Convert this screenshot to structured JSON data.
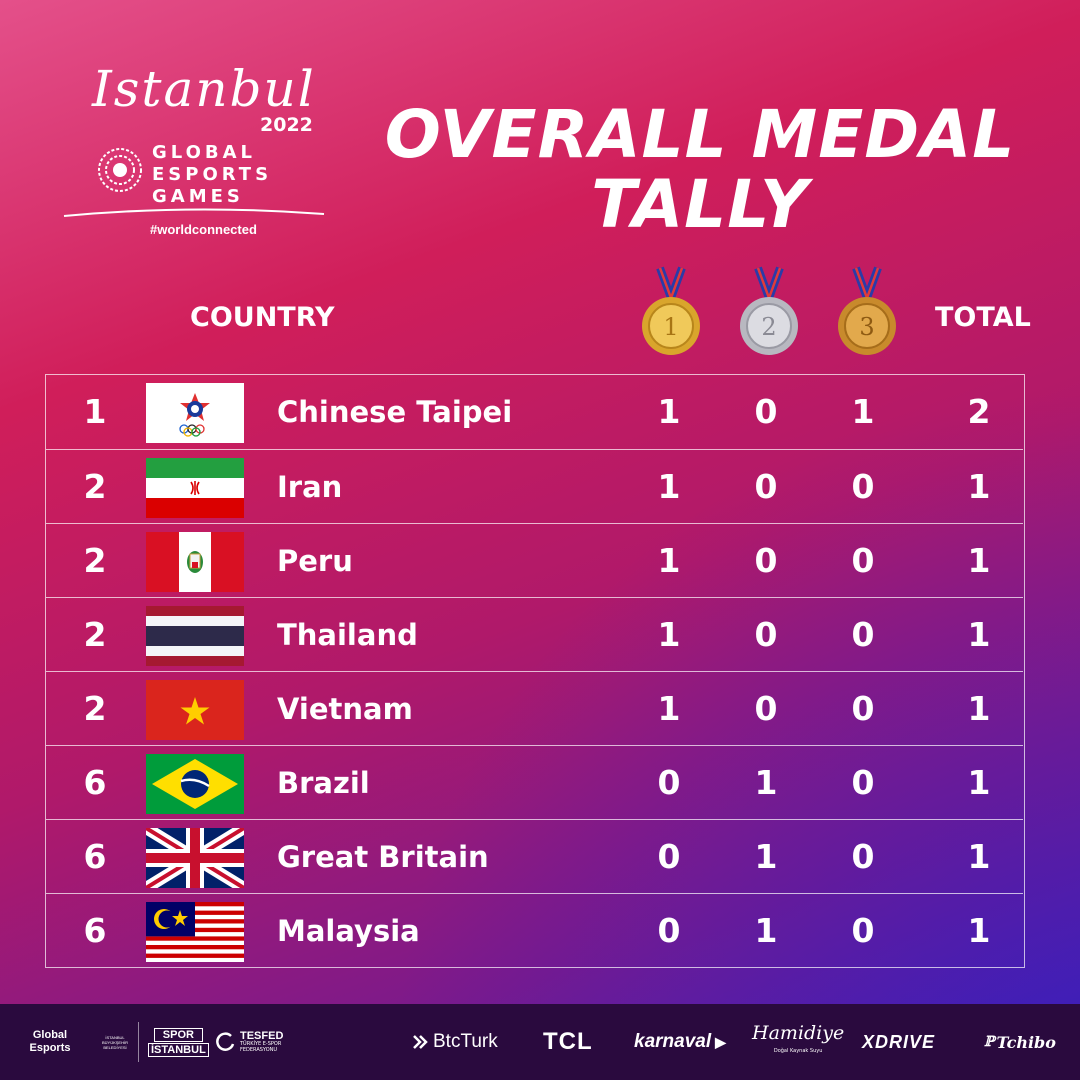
{
  "logo": {
    "script": "Istanbul",
    "year": "2022",
    "line1": "GLOBAL",
    "line2": "ESPORTS",
    "line3": "GAMES",
    "hashtag": "#worldconnected"
  },
  "title": {
    "line1": "OVERALL MEDAL",
    "line2": "TALLY"
  },
  "headers": {
    "country": "COUNTRY",
    "total": "TOTAL",
    "medals": [
      {
        "name": "gold-medal-icon",
        "label": "1",
        "color": "#e2b53b"
      },
      {
        "name": "silver-medal-icon",
        "label": "2",
        "color": "#c9c9cf"
      },
      {
        "name": "bronze-medal-icon",
        "label": "3",
        "color": "#d49a37"
      }
    ]
  },
  "rows": [
    {
      "rank": "1",
      "country": "Chinese Taipei",
      "flag": "chinese-taipei-flag",
      "gold": "1",
      "silver": "0",
      "bronze": "1",
      "total": "2"
    },
    {
      "rank": "2",
      "country": "Iran",
      "flag": "iran-flag",
      "gold": "1",
      "silver": "0",
      "bronze": "0",
      "total": "1"
    },
    {
      "rank": "2",
      "country": "Peru",
      "flag": "peru-flag",
      "gold": "1",
      "silver": "0",
      "bronze": "0",
      "total": "1"
    },
    {
      "rank": "2",
      "country": "Thailand",
      "flag": "thailand-flag",
      "gold": "1",
      "silver": "0",
      "bronze": "0",
      "total": "1"
    },
    {
      "rank": "2",
      "country": "Vietnam",
      "flag": "vietnam-flag",
      "gold": "1",
      "silver": "0",
      "bronze": "0",
      "total": "1"
    },
    {
      "rank": "6",
      "country": "Brazil",
      "flag": "brazil-flag",
      "gold": "0",
      "silver": "1",
      "bronze": "0",
      "total": "1"
    },
    {
      "rank": "6",
      "country": "Great Britain",
      "flag": "great-britain-flag",
      "gold": "0",
      "silver": "1",
      "bronze": "0",
      "total": "1"
    },
    {
      "rank": "6",
      "country": "Malaysia",
      "flag": "malaysia-flag",
      "gold": "0",
      "silver": "1",
      "bronze": "0",
      "total": "1"
    }
  ],
  "footer": {
    "organizers": {
      "global_esports": "Global Esports",
      "ibb": "İSTANBUL BÜYÜKŞEHİR BELEDİYESİ",
      "spor_istanbul_1": "SPOR",
      "spor_istanbul_2": "İSTANBUL",
      "tesfed": "TESFED",
      "tesfed_sub": "TÜRKİYE E-SPOR FEDERASYONU"
    },
    "sponsors": {
      "btcturk": "BtcTurk",
      "tcl": "TCL",
      "karnaval": "karnaval",
      "hamidiye": "Hamidiye",
      "hamidiye_sub": "Doğal Kaynak Suyu",
      "xdrive": "XDRIVE",
      "tchibo": "Tchibo"
    }
  },
  "colors": {
    "background_top": "#e4508a",
    "background_mid": "#b0196a",
    "background_bottom": "#4a1fb0",
    "footer": "#2a0a3e",
    "text": "#ffffff"
  }
}
